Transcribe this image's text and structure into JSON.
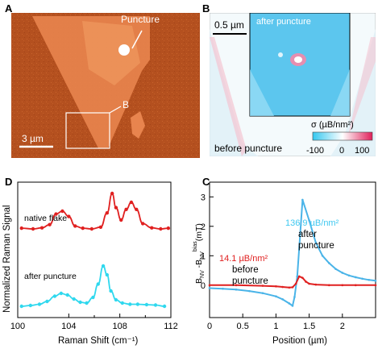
{
  "panels": {
    "a": {
      "letter": "A",
      "puncture_label": "Puncture",
      "inset_label": "B",
      "scalebar_label": "3 µm"
    },
    "b": {
      "letter": "B",
      "scalebar_label": "0.5 µm",
      "inset_caption": "after puncture",
      "outer_caption": "before puncture",
      "colorbar_label": "σ (µB/nm²)",
      "colorbar_ticks": [
        "-100",
        "0",
        "100"
      ],
      "colorbar_colors": [
        "#35c8f0",
        "#ffffff",
        "#e0205a"
      ]
    },
    "d": {
      "letter": "D",
      "ylabel": "Normalized Raman Signal",
      "xlabel": "Raman Shift (cm⁻¹)",
      "xticks": [
        "100",
        "104",
        "108",
        "112"
      ],
      "label_native": "native flake",
      "label_after": "after puncture",
      "colors": {
        "native": "#e02020",
        "after": "#2fd8ee"
      }
    },
    "c": {
      "letter": "C",
      "ylabel": "B_NV - B_NV^bias (mT)",
      "xlabel": "Position (µm)",
      "xticks": [
        "0",
        "0.5",
        "1",
        "1.5",
        "2"
      ],
      "yticks": [
        "0",
        "1",
        "2",
        "3"
      ],
      "after_value": "136.9 µB/nm²",
      "after_text_1": "after",
      "after_text_2": "puncture",
      "before_value": "14.1 µB/nm²",
      "before_text_1": "before",
      "before_text_2": "puncture",
      "colors": {
        "after": "#4ab4e8",
        "before": "#e02020"
      }
    }
  },
  "chart_data": [
    {
      "type": "line",
      "panel": "D",
      "xlabel": "Raman Shift (cm⁻¹)",
      "ylabel": "Normalized Raman Signal",
      "xlim": [
        100,
        112
      ],
      "series": [
        {
          "name": "native flake",
          "x": [
            100.3,
            101.2,
            101.9,
            102.5,
            103.0,
            103.5,
            104.0,
            104.5,
            105.1,
            105.8,
            106.5,
            107.0,
            107.4,
            107.7,
            108.1,
            108.5,
            108.9,
            109.3,
            109.8,
            110.5,
            111.2,
            111.8
          ],
          "y": [
            0.02,
            0.0,
            0.03,
            0.12,
            0.42,
            0.5,
            0.35,
            0.08,
            0.02,
            0.0,
            0.05,
            0.45,
            1.0,
            0.6,
            0.25,
            0.55,
            0.75,
            0.55,
            0.15,
            0.03,
            0.0,
            0.02
          ]
        },
        {
          "name": "after puncture",
          "x": [
            100.3,
            101.0,
            101.7,
            102.3,
            102.9,
            103.4,
            103.9,
            104.4,
            104.9,
            105.4,
            105.9,
            106.3,
            106.7,
            107.0,
            107.3,
            107.7,
            108.2,
            108.8,
            109.4,
            110.1,
            110.8,
            111.5
          ],
          "y": [
            0.0,
            0.02,
            0.05,
            0.12,
            0.25,
            0.32,
            0.28,
            0.18,
            0.1,
            0.08,
            0.22,
            0.55,
            1.0,
            0.78,
            0.38,
            0.16,
            0.08,
            0.05,
            0.05,
            0.04,
            0.03,
            0.0
          ]
        }
      ]
    },
    {
      "type": "line",
      "panel": "C",
      "xlabel": "Position (µm)",
      "ylabel": "B_NV - B_NV^bias (mT)",
      "xlim": [
        0,
        2.5
      ],
      "ylim": [
        -1.1,
        3.5
      ],
      "series": [
        {
          "name": "136.9 µB/nm² after puncture",
          "x": [
            0,
            0.2,
            0.4,
            0.6,
            0.8,
            1.0,
            1.1,
            1.2,
            1.25,
            1.28,
            1.32,
            1.4,
            1.5,
            1.6,
            1.7,
            1.8,
            1.9,
            2.0,
            2.1,
            2.2,
            2.3,
            2.4,
            2.5
          ],
          "y": [
            -0.1,
            -0.12,
            -0.15,
            -0.2,
            -0.27,
            -0.38,
            -0.48,
            -0.62,
            -0.7,
            -0.4,
            0.3,
            2.9,
            2.2,
            1.45,
            1.0,
            0.75,
            0.55,
            0.42,
            0.33,
            0.27,
            0.22,
            0.18,
            0.15
          ]
        },
        {
          "name": "14.1 µB/nm² before puncture",
          "x": [
            0,
            0.4,
            0.8,
            1.0,
            1.1,
            1.2,
            1.25,
            1.3,
            1.35,
            1.4,
            1.45,
            1.5,
            1.6,
            1.8,
            2.0,
            2.2,
            2.5
          ],
          "y": [
            0.0,
            0.0,
            -0.02,
            -0.04,
            -0.06,
            -0.08,
            -0.07,
            0.05,
            0.3,
            0.25,
            0.12,
            0.05,
            0.02,
            0.0,
            0.0,
            0.0,
            0.0
          ]
        }
      ]
    }
  ]
}
